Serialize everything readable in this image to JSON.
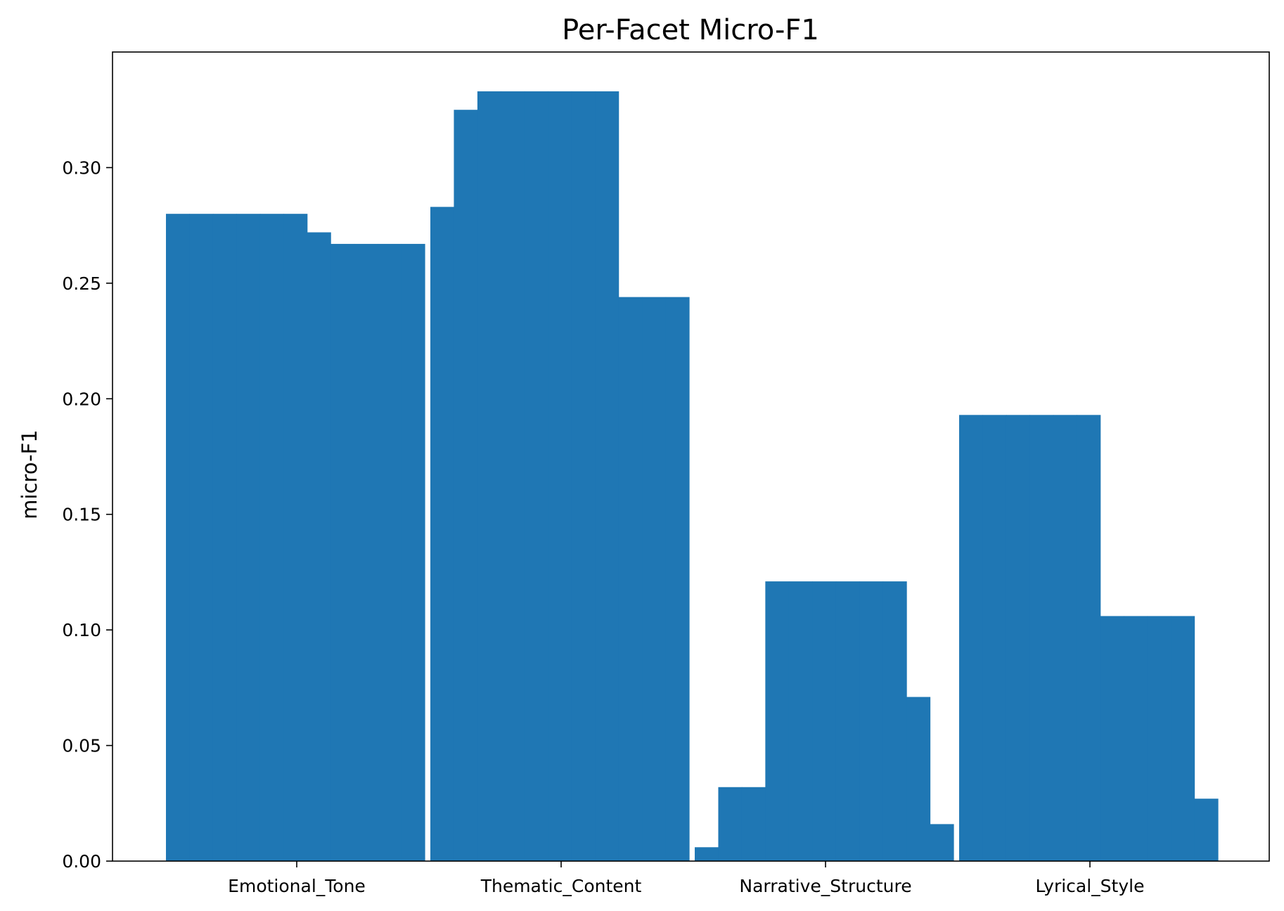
{
  "chart_data": {
    "type": "bar",
    "title": "Per-Facet Micro-F1",
    "xlabel": "",
    "ylabel": "micro-F1",
    "categories": [
      "Emotional_Tone",
      "Thematic_Content",
      "Narrative_Structure",
      "Lyrical_Style"
    ],
    "ylim": [
      0,
      0.35
    ],
    "yticks": [
      "0.00",
      "0.05",
      "0.10",
      "0.15",
      "0.20",
      "0.25",
      "0.30"
    ],
    "grid": false,
    "bar_color": "#1f77b4",
    "bar_groups": [
      {
        "category": "Emotional_Tone",
        "bars": [
          {
            "values": [
              0.28,
              0.28,
              0.28,
              0.28,
              0.28,
              0.28
            ]
          },
          {
            "values": [
              0.272
            ]
          },
          {
            "values": [
              0.267,
              0.267,
              0.267,
              0.267
            ]
          }
        ]
      },
      {
        "category": "Thematic_Content",
        "bars": [
          {
            "values": [
              0.283
            ]
          },
          {
            "values": [
              0.325
            ]
          },
          {
            "values": [
              0.333,
              0.333,
              0.333,
              0.333,
              0.333,
              0.333
            ]
          },
          {
            "values": [
              0.244,
              0.244,
              0.244
            ]
          }
        ]
      },
      {
        "category": "Narrative_Structure",
        "bars": [
          {
            "values": [
              0.006
            ]
          },
          {
            "values": [
              0.032,
              0.032
            ]
          },
          {
            "values": [
              0.121,
              0.121,
              0.121,
              0.121,
              0.121,
              0.121
            ]
          },
          {
            "values": [
              0.071
            ]
          },
          {
            "values": [
              0.016
            ]
          }
        ]
      },
      {
        "category": "Lyrical_Style",
        "bars": [
          {
            "values": [
              0.193,
              0.193,
              0.193,
              0.193,
              0.193,
              0.193
            ]
          },
          {
            "values": [
              0.106,
              0.106,
              0.106,
              0.106
            ]
          },
          {
            "values": [
              0.027
            ]
          }
        ]
      }
    ]
  }
}
